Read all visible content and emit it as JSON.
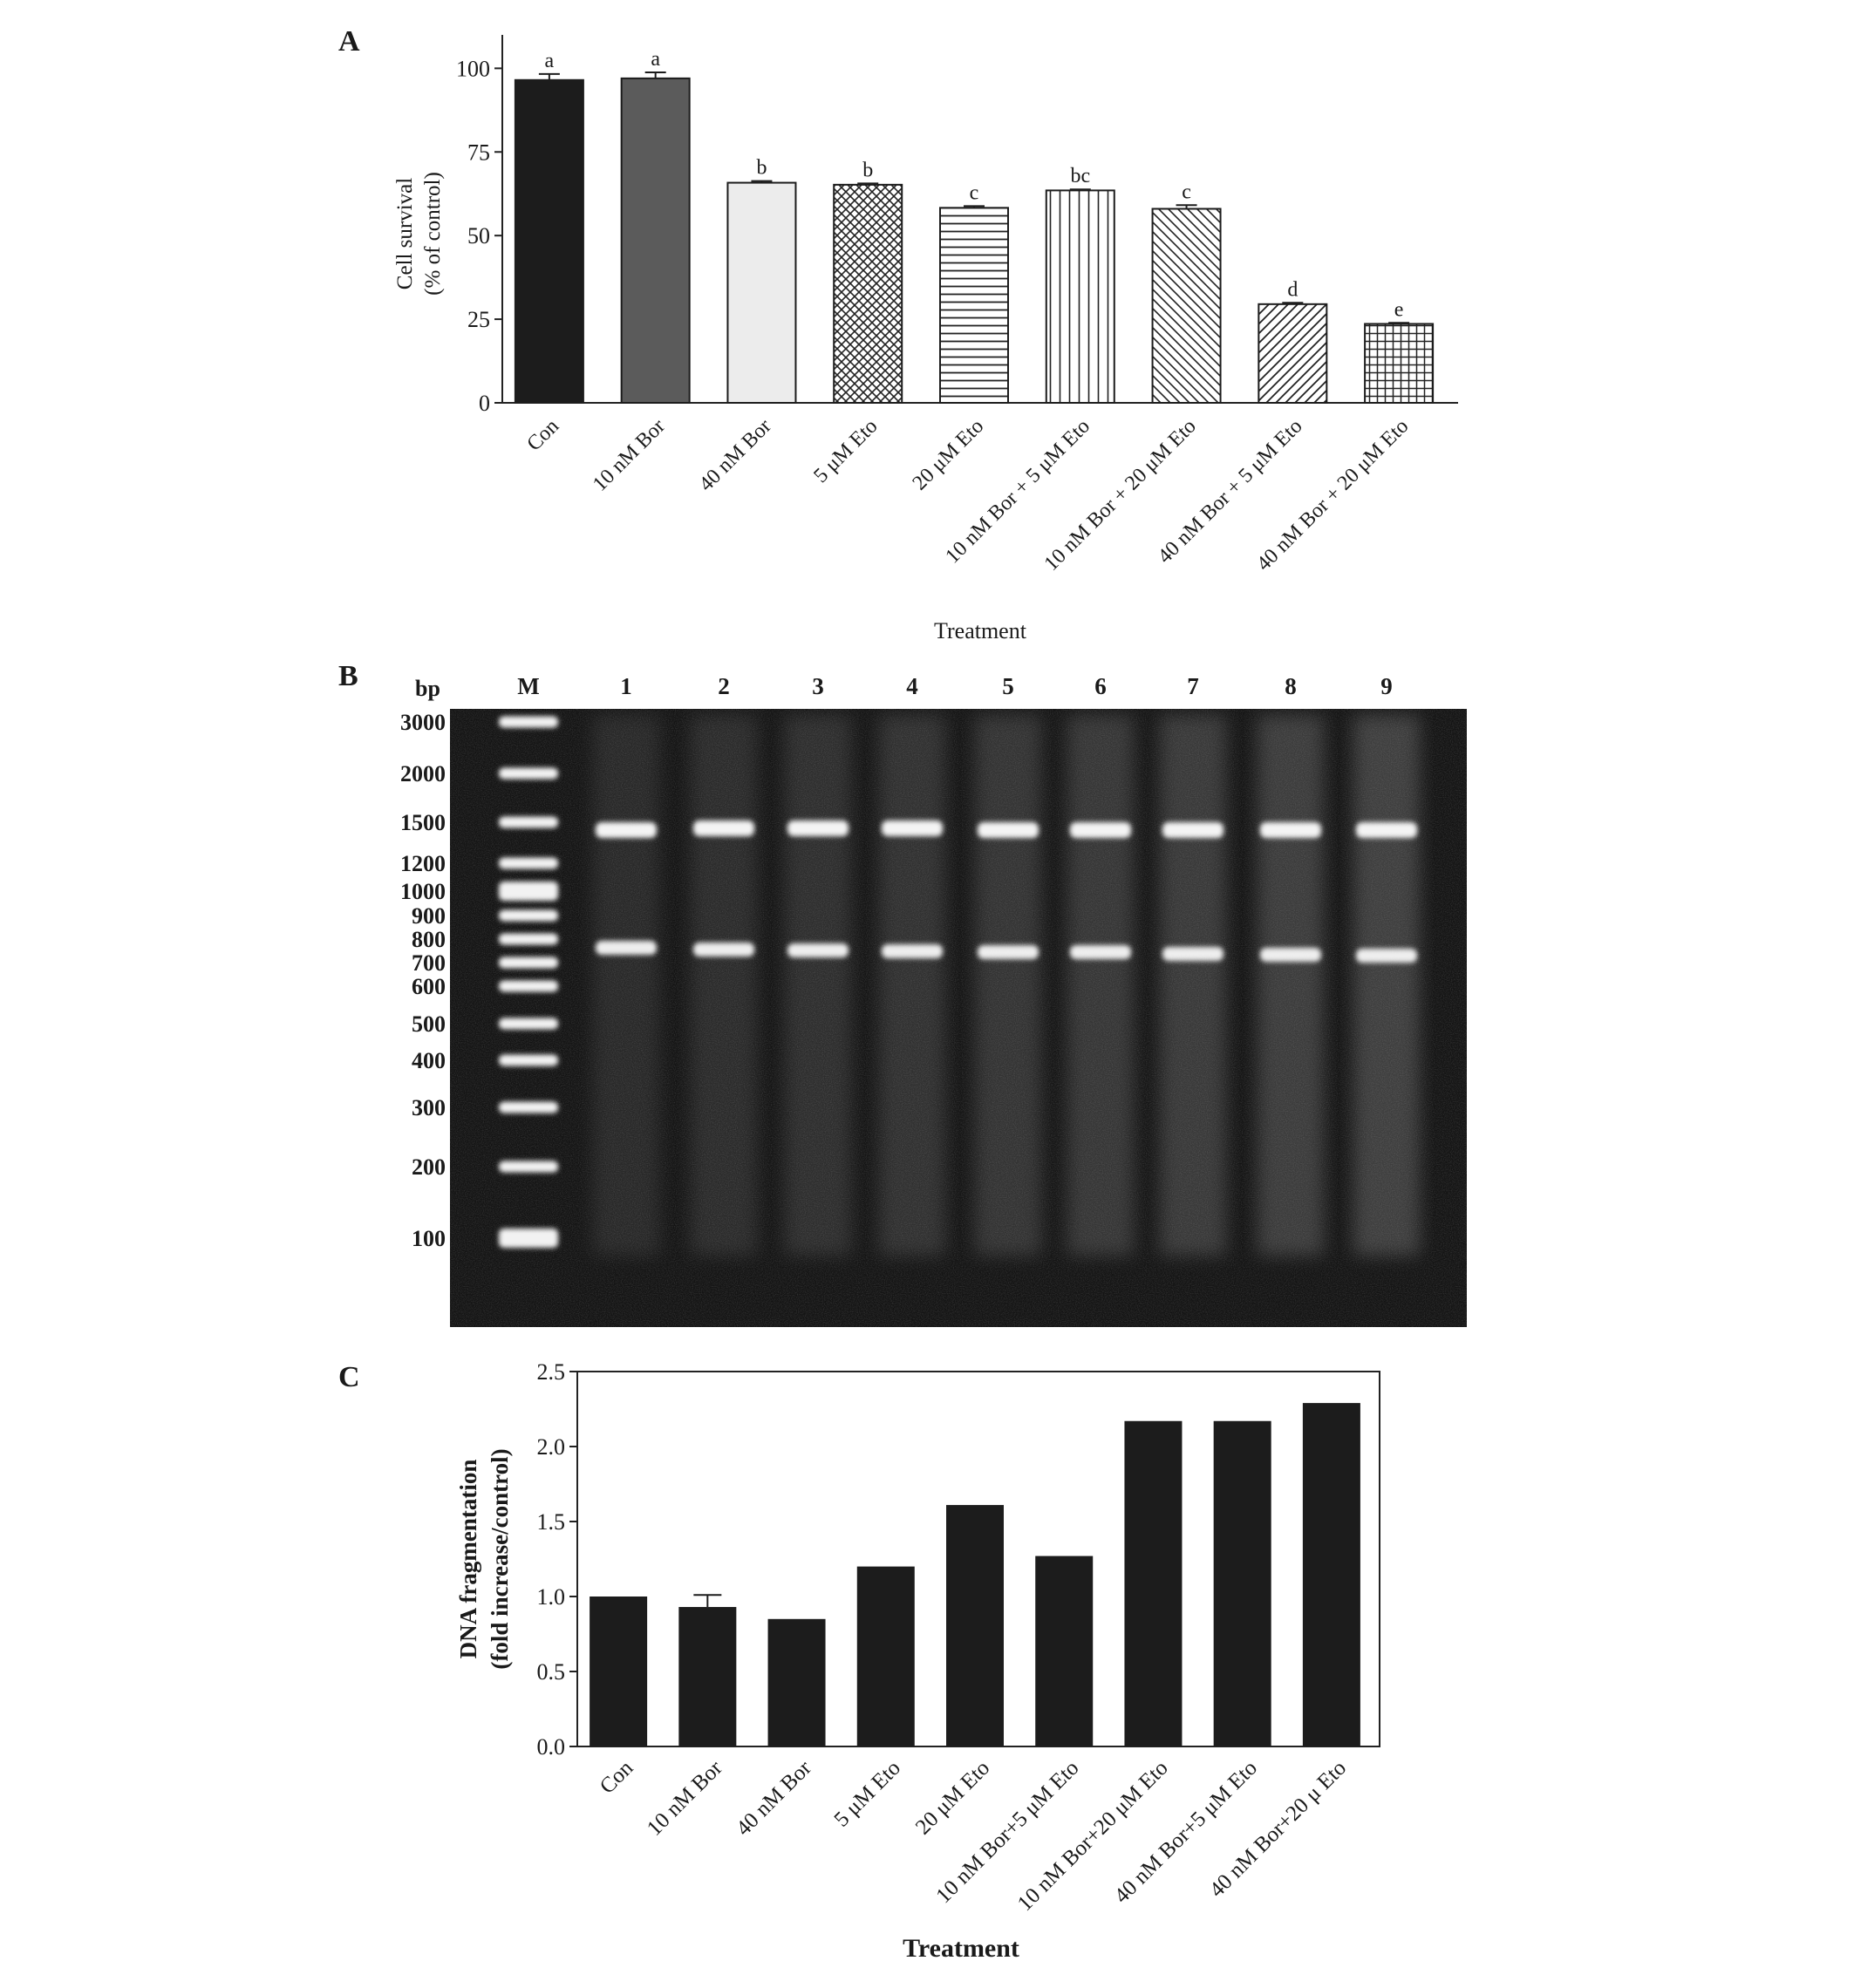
{
  "panels": {
    "A": {
      "label": "A"
    },
    "B": {
      "label": "B"
    },
    "C": {
      "label": "C"
    }
  },
  "chart_data": [
    {
      "panel": "A",
      "type": "bar",
      "ylabel_line1": "Cell survival",
      "ylabel_line2": "(% of control)",
      "xlabel": "Treatment",
      "ylim": [
        0,
        110
      ],
      "yticks": [
        0,
        25,
        50,
        75,
        100
      ],
      "grid": false,
      "categories": [
        "Con",
        "10 nM Bor",
        "40 nM Bor",
        "5 μM Eto",
        "20 μM Eto",
        "10 nM Bor + 5 μM Eto",
        "10 nM Bor + 20 μM Eto",
        "40 nM Bor + 5 μM Eto",
        "40 nM Bor + 20 μM Eto"
      ],
      "values": [
        96.5,
        97.0,
        65.8,
        65.2,
        58.3,
        63.5,
        58.0,
        29.5,
        23.6
      ],
      "errors": [
        1.8,
        1.8,
        0.5,
        0.4,
        0.5,
        0.3,
        1.1,
        0.4,
        0.3
      ],
      "significance_letters": [
        "a",
        "a",
        "b",
        "b",
        "c",
        "bc",
        "c",
        "d",
        "e"
      ],
      "fills": [
        "solid-black",
        "solid-dark-gray",
        "light-gray",
        "crosshatch",
        "horizontal-lines",
        "vertical-lines",
        "diagonal-back",
        "diagonal-forward",
        "grid"
      ]
    },
    {
      "panel": "B",
      "type": "gel",
      "size_label": "bp",
      "lanes": [
        "M",
        "1",
        "2",
        "3",
        "4",
        "5",
        "6",
        "7",
        "8",
        "9"
      ],
      "marker_sizes_bp": [
        3000,
        2000,
        1500,
        1200,
        1000,
        900,
        800,
        700,
        600,
        500,
        400,
        300,
        200,
        100
      ],
      "sample_band_sizes_bp": [
        1500,
        700
      ],
      "background": "#141414"
    },
    {
      "panel": "C",
      "type": "bar",
      "ylabel_line1": "DNA fragmentation",
      "ylabel_line2": "(fold increase/control)",
      "xlabel": "Treatment",
      "ylim": [
        0.0,
        2.5
      ],
      "yticks": [
        "0.0",
        "0.5",
        "1.0",
        "1.5",
        "2.0",
        "2.5"
      ],
      "grid": false,
      "categories": [
        "Con",
        "10 nM Bor",
        "40 nM Bor",
        "5 μM Eto",
        "20 μM Eto",
        "10 nM Bor+5 μM Eto",
        "10 nM Bor+20 μM Eto",
        "40 nM Bor+5 μM Eto",
        "40 nM Bor+20 μ Eto"
      ],
      "values": [
        1.0,
        0.93,
        0.85,
        1.2,
        1.61,
        1.27,
        2.17,
        2.17,
        2.29
      ],
      "errors": [
        0.0,
        0.08,
        0.0,
        0.0,
        0.0,
        0.0,
        0.0,
        0.0,
        0.0
      ]
    }
  ]
}
